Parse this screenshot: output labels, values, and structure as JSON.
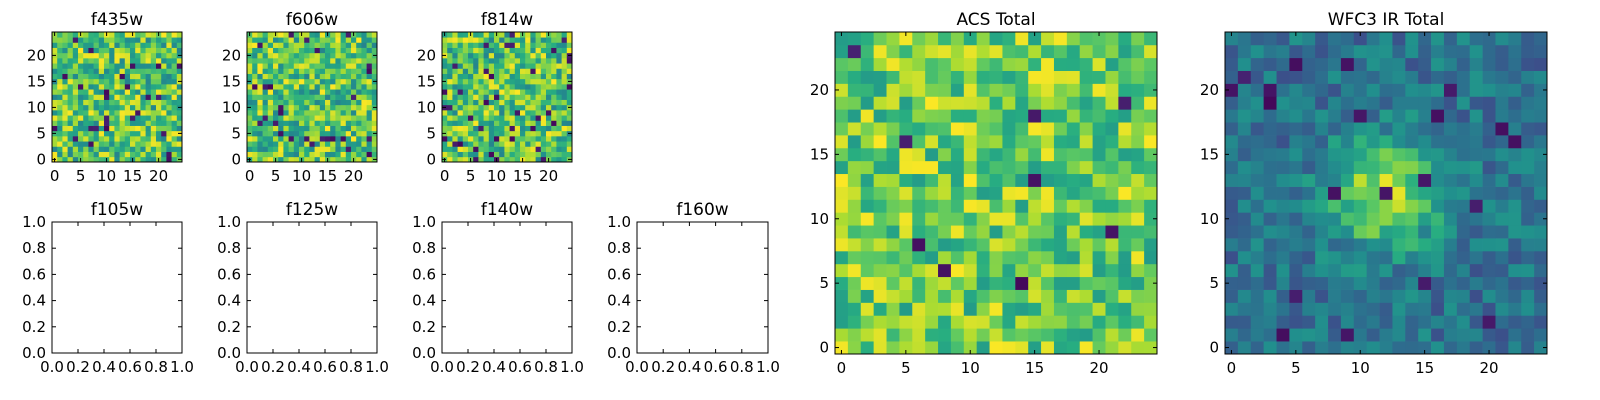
{
  "figure": {
    "colormap": "viridis"
  },
  "chart_data": [
    {
      "type": "heatmap",
      "title": "f435w",
      "xticks": [
        "0",
        "5",
        "10",
        "15",
        "20"
      ],
      "yticks": [
        "0",
        "5",
        "10",
        "15",
        "20"
      ],
      "xlim": [
        -0.5,
        24.5
      ],
      "ylim": [
        -0.5,
        24.5
      ],
      "grid": false,
      "pattern": "noise",
      "dark_fraction": 0.05,
      "notes": "25x25 pixel cutout, approximate noisy values"
    },
    {
      "type": "heatmap",
      "title": "f606w",
      "xticks": [
        "0",
        "5",
        "10",
        "15",
        "20"
      ],
      "yticks": [
        "0",
        "5",
        "10",
        "15",
        "20"
      ],
      "xlim": [
        -0.5,
        24.5
      ],
      "ylim": [
        -0.5,
        24.5
      ],
      "grid": false,
      "pattern": "noise",
      "dark_fraction": 0.05
    },
    {
      "type": "heatmap",
      "title": "f814w",
      "xticks": [
        "0",
        "5",
        "10",
        "15",
        "20"
      ],
      "yticks": [
        "0",
        "5",
        "10",
        "15",
        "20"
      ],
      "xlim": [
        -0.5,
        24.5
      ],
      "ylim": [
        -0.5,
        24.5
      ],
      "grid": false,
      "pattern": "noise",
      "dark_fraction": 0.06
    },
    {
      "type": "empty",
      "title": "f105w",
      "xticks": [
        "0.0",
        "0.2",
        "0.4",
        "0.6",
        "0.8",
        "1.0"
      ],
      "yticks": [
        "0.0",
        "0.2",
        "0.4",
        "0.6",
        "0.8",
        "1.0"
      ],
      "xlim": [
        0,
        1
      ],
      "ylim": [
        0,
        1
      ]
    },
    {
      "type": "empty",
      "title": "f125w",
      "xticks": [
        "0.0",
        "0.2",
        "0.4",
        "0.6",
        "0.8",
        "1.0"
      ],
      "yticks": [
        "0.0",
        "0.2",
        "0.4",
        "0.6",
        "0.8",
        "1.0"
      ],
      "xlim": [
        0,
        1
      ],
      "ylim": [
        0,
        1
      ]
    },
    {
      "type": "empty",
      "title": "f140w",
      "xticks": [
        "0.0",
        "0.2",
        "0.4",
        "0.6",
        "0.8",
        "1.0"
      ],
      "yticks": [
        "0.0",
        "0.2",
        "0.4",
        "0.6",
        "0.8",
        "1.0"
      ],
      "xlim": [
        0,
        1
      ],
      "ylim": [
        0,
        1
      ]
    },
    {
      "type": "empty",
      "title": "f160w",
      "xticks": [
        "0.0",
        "0.2",
        "0.4",
        "0.6",
        "0.8",
        "1.0"
      ],
      "yticks": [
        "0.0",
        "0.2",
        "0.4",
        "0.6",
        "0.8",
        "1.0"
      ],
      "xlim": [
        0,
        1
      ],
      "ylim": [
        0,
        1
      ]
    },
    {
      "type": "heatmap",
      "title": "ACS Total",
      "xticks": [
        "0",
        "5",
        "10",
        "15",
        "20"
      ],
      "yticks": [
        "0",
        "5",
        "10",
        "15",
        "20"
      ],
      "xlim": [
        -0.5,
        24.5
      ],
      "ylim": [
        -0.5,
        24.5
      ],
      "grid": false,
      "pattern": "noise",
      "dark_fraction": 0.015
    },
    {
      "type": "heatmap",
      "title": "WFC3 IR Total",
      "xticks": [
        "0",
        "5",
        "10",
        "15",
        "20"
      ],
      "yticks": [
        "0",
        "5",
        "10",
        "15",
        "20"
      ],
      "xlim": [
        -0.5,
        24.5
      ],
      "ylim": [
        -0.5,
        24.5
      ],
      "grid": false,
      "pattern": "source",
      "source_center": [
        12,
        12
      ],
      "dark_fraction": 0.03
    }
  ]
}
